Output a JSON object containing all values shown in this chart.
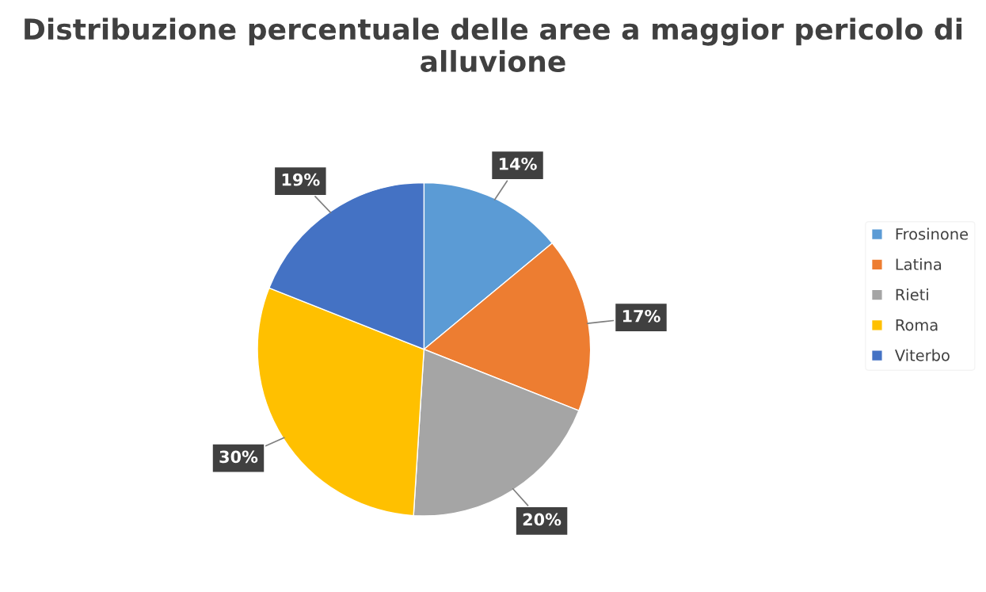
{
  "chart_data": {
    "type": "pie",
    "title": "Distribuzione percentuale delle aree a maggior pericolo di alluvione",
    "categories": [
      "Frosinone",
      "Latina",
      "Rieti",
      "Roma",
      "Viterbo"
    ],
    "values": [
      14,
      17,
      20,
      30,
      19
    ],
    "colors": [
      "#5b9bd5",
      "#ed7d31",
      "#a5a5a5",
      "#ffc000",
      "#4472c4"
    ],
    "value_labels": [
      "14%",
      "17%",
      "20%",
      "30%",
      "19%"
    ],
    "legend": "right"
  }
}
